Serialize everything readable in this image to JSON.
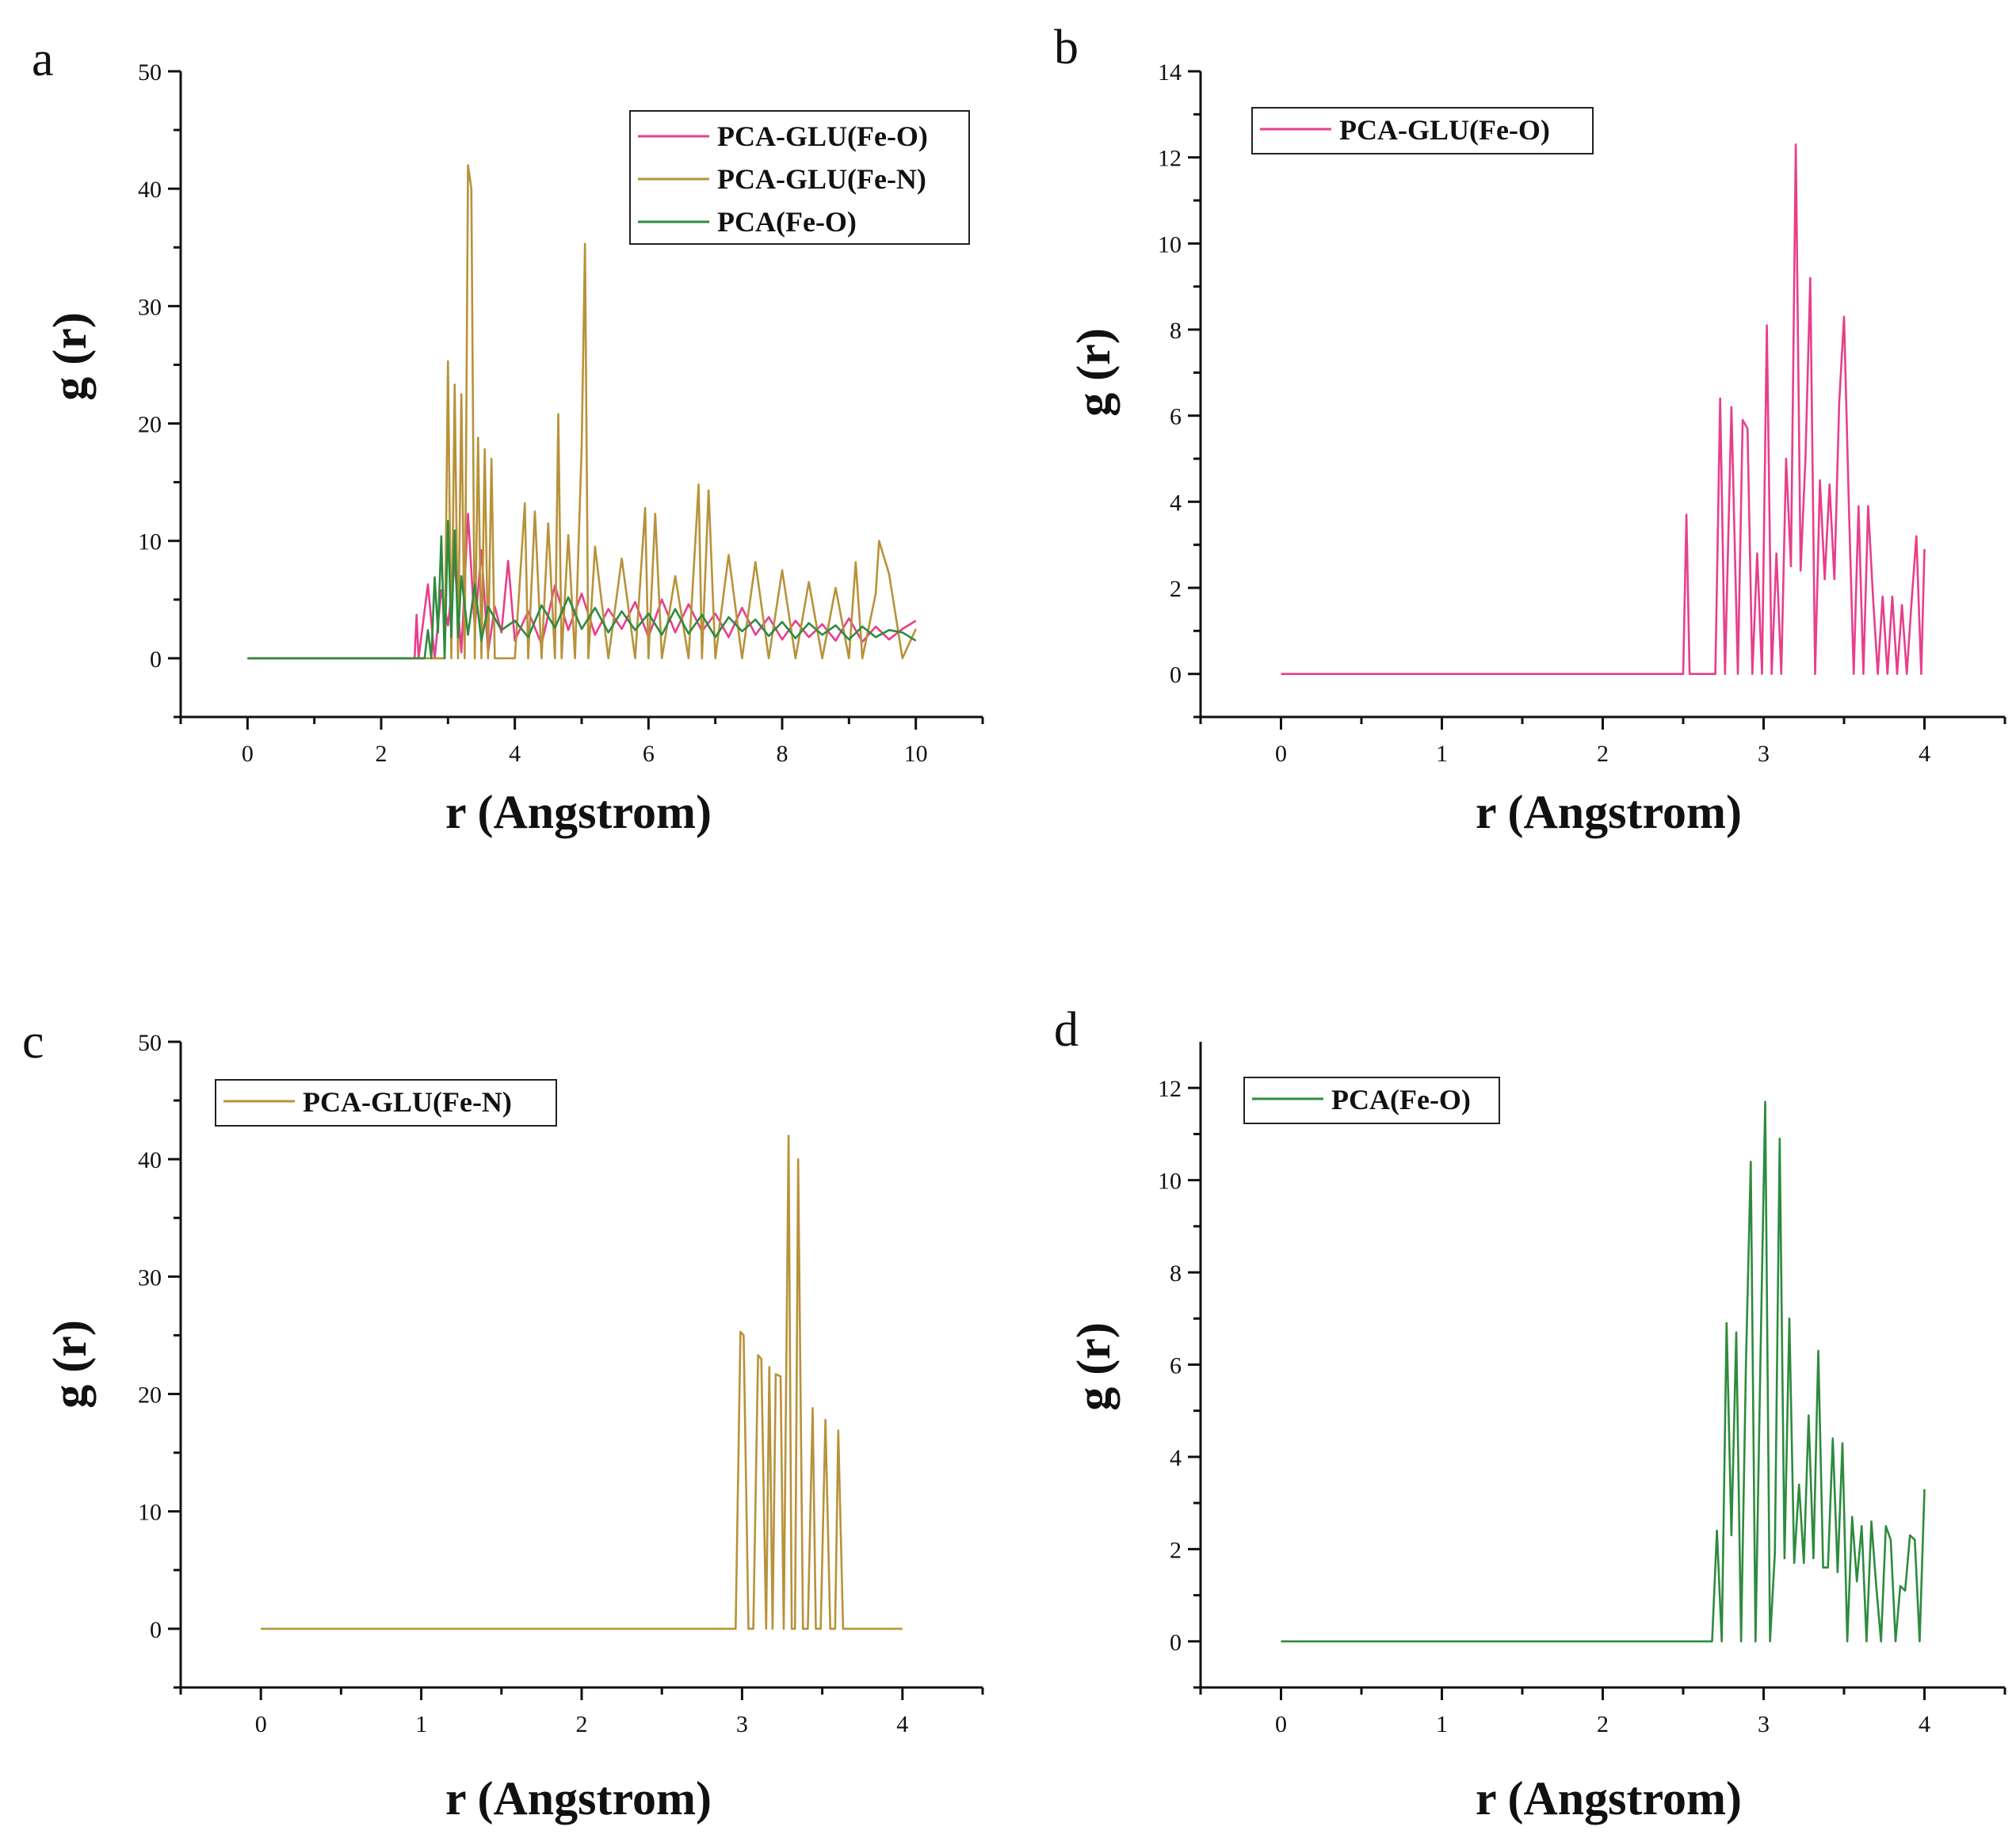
{
  "figure": {
    "panels": [
      "a",
      "b",
      "c",
      "d"
    ]
  },
  "colors": {
    "pink": "#e83e8c",
    "gold": "#b8923a",
    "green": "#2e8b3e"
  },
  "chart_data": [
    {
      "panel": "a",
      "type": "line",
      "title": "",
      "xlabel": "r (Angstrom)",
      "ylabel": "g (r)",
      "xlim": [
        -1,
        11
      ],
      "ylim": [
        -5,
        50
      ],
      "xticks": [
        0,
        2,
        4,
        6,
        8,
        10
      ],
      "yticks": [
        0,
        10,
        20,
        30,
        40,
        50
      ],
      "legend_position": "top-right",
      "series": [
        {
          "name": "PCA-GLU(Fe-O)",
          "color": "pink",
          "x": [
            0,
            2.5,
            2.53,
            2.56,
            2.7,
            2.8,
            2.9,
            3.0,
            3.1,
            3.2,
            3.3,
            3.4,
            3.5,
            3.6,
            3.7,
            3.8,
            3.9,
            4.0,
            4.2,
            4.4,
            4.6,
            4.8,
            5.0,
            5.2,
            5.4,
            5.6,
            5.8,
            6.0,
            6.2,
            6.4,
            6.6,
            6.8,
            7.0,
            7.2,
            7.4,
            7.6,
            7.8,
            8.0,
            8.2,
            8.4,
            8.6,
            8.8,
            9.0,
            9.2,
            9.4,
            9.6,
            9.8,
            10.0
          ],
          "y": [
            0,
            0,
            3.7,
            0,
            6.3,
            0,
            5.8,
            2.8,
            8.1,
            0.5,
            12.3,
            2.5,
            9.2,
            0.5,
            4.4,
            2.2,
            8.3,
            1.5,
            4,
            1.2,
            6.2,
            2.4,
            5.5,
            2,
            4.2,
            2.5,
            4.8,
            1.8,
            5,
            2.2,
            4.6,
            2.3,
            3.8,
            1.8,
            4.3,
            2,
            3.5,
            1.6,
            3.2,
            1.8,
            2.9,
            1.5,
            3.4,
            1.4,
            2.7,
            1.6,
            2.5,
            3.2
          ]
        },
        {
          "name": "PCA-GLU(Fe-N)",
          "color": "gold",
          "x": [
            0,
            2.95,
            3.0,
            3.05,
            3.1,
            3.15,
            3.2,
            3.25,
            3.3,
            3.35,
            3.4,
            3.45,
            3.5,
            3.55,
            3.6,
            3.65,
            3.7,
            4.0,
            4.15,
            4.2,
            4.3,
            4.4,
            4.5,
            4.6,
            4.65,
            4.7,
            4.8,
            4.9,
            5.0,
            5.05,
            5.1,
            5.2,
            5.4,
            5.6,
            5.8,
            5.95,
            6.0,
            6.1,
            6.2,
            6.4,
            6.6,
            6.75,
            6.8,
            6.9,
            7.0,
            7.2,
            7.4,
            7.6,
            7.8,
            8.0,
            8.2,
            8.4,
            8.6,
            8.8,
            9.0,
            9.1,
            9.2,
            9.4,
            9.45,
            9.6,
            9.8,
            10.0
          ],
          "y": [
            0,
            0,
            25.3,
            0,
            23.3,
            0,
            22.5,
            0,
            42,
            40,
            0,
            18.8,
            0,
            17.8,
            0,
            17,
            0,
            0,
            13.2,
            0,
            12.5,
            0,
            11.5,
            0,
            20.8,
            0,
            10.5,
            0,
            18,
            35.3,
            0,
            9.5,
            0,
            8.5,
            0,
            12.8,
            0,
            12.3,
            0,
            7,
            0,
            14.8,
            0,
            14.3,
            0,
            8.8,
            0,
            8.2,
            0,
            7.5,
            0,
            6.5,
            0,
            6,
            0,
            8.2,
            0,
            5.5,
            10,
            7.2,
            0,
            2.5
          ]
        },
        {
          "name": "PCA(Fe-O)",
          "color": "green",
          "x": [
            0,
            2.65,
            2.7,
            2.75,
            2.8,
            2.85,
            2.9,
            2.95,
            3.0,
            3.05,
            3.1,
            3.15,
            3.2,
            3.3,
            3.4,
            3.5,
            3.6,
            3.8,
            4.0,
            4.2,
            4.4,
            4.6,
            4.8,
            5.0,
            5.2,
            5.4,
            5.6,
            5.8,
            6.0,
            6.2,
            6.4,
            6.6,
            6.8,
            7.0,
            7.2,
            7.4,
            7.6,
            7.8,
            8.0,
            8.2,
            8.4,
            8.6,
            8.8,
            9.0,
            9.2,
            9.4,
            9.6,
            9.8,
            10.0
          ],
          "y": [
            0,
            0,
            2.4,
            0,
            6.9,
            2.2,
            10.4,
            0,
            11.7,
            1.8,
            10.9,
            1.8,
            7,
            2,
            6.3,
            1.5,
            4.4,
            2.4,
            3.2,
            1.8,
            4.5,
            2.6,
            5.2,
            2.5,
            4.3,
            2.2,
            4,
            2.4,
            3.8,
            2,
            4.2,
            2.1,
            3.7,
            1.8,
            3.5,
            2.3,
            3.3,
            1.9,
            3.1,
            1.7,
            3,
            2,
            2.8,
            1.6,
            2.7,
            1.8,
            2.4,
            2.2,
            1.5
          ]
        }
      ]
    },
    {
      "panel": "b",
      "type": "line",
      "title": "",
      "xlabel": "r (Angstrom)",
      "ylabel": "g (r)",
      "xlim": [
        -0.5,
        4.5
      ],
      "ylim": [
        -1,
        14
      ],
      "xticks": [
        0,
        1,
        2,
        3,
        4
      ],
      "yticks": [
        0,
        2,
        4,
        6,
        8,
        10,
        12,
        14
      ],
      "legend_position": "top-left",
      "series": [
        {
          "name": "PCA-GLU(Fe-O)",
          "color": "pink",
          "x": [
            0,
            2.5,
            2.52,
            2.54,
            2.7,
            2.73,
            2.76,
            2.8,
            2.84,
            2.87,
            2.9,
            2.93,
            2.96,
            2.99,
            3.02,
            3.05,
            3.08,
            3.11,
            3.14,
            3.17,
            3.2,
            3.23,
            3.26,
            3.29,
            3.32,
            3.35,
            3.38,
            3.41,
            3.44,
            3.47,
            3.5,
            3.53,
            3.56,
            3.59,
            3.62,
            3.65,
            3.68,
            3.71,
            3.74,
            3.77,
            3.8,
            3.83,
            3.86,
            3.89,
            3.92,
            3.95,
            3.98,
            4.0
          ],
          "y": [
            0,
            0,
            3.7,
            0,
            0,
            6.4,
            0,
            6.2,
            0,
            5.9,
            5.7,
            0,
            2.8,
            0,
            8.1,
            0,
            2.8,
            0,
            5.0,
            2.5,
            12.3,
            2.4,
            5.0,
            9.2,
            0,
            4.5,
            2.2,
            4.4,
            2.2,
            6.3,
            8.3,
            3.9,
            0,
            3.9,
            0,
            3.9,
            1.8,
            0,
            1.8,
            0,
            1.8,
            0,
            1.6,
            0,
            1.7,
            3.2,
            0,
            2.9
          ]
        }
      ]
    },
    {
      "panel": "c",
      "type": "line",
      "title": "",
      "xlabel": "r (Angstrom)",
      "ylabel": "g (r)",
      "xlim": [
        -0.5,
        4.5
      ],
      "ylim": [
        -5,
        50
      ],
      "xticks": [
        0,
        1,
        2,
        3,
        4
      ],
      "yticks": [
        0,
        10,
        20,
        30,
        40,
        50
      ],
      "legend_position": "top-left",
      "series": [
        {
          "name": "PCA-GLU(Fe-N)",
          "color": "gold",
          "x": [
            0,
            2.96,
            2.99,
            3.01,
            3.04,
            3.07,
            3.1,
            3.12,
            3.15,
            3.17,
            3.19,
            3.21,
            3.24,
            3.26,
            3.29,
            3.31,
            3.33,
            3.35,
            3.38,
            3.41,
            3.44,
            3.46,
            3.49,
            3.52,
            3.55,
            3.58,
            3.6,
            3.63,
            3.66,
            3.7,
            4.0
          ],
          "y": [
            0,
            0,
            25.3,
            25.0,
            0,
            0,
            23.3,
            23.0,
            0,
            22.3,
            0,
            21.7,
            21.5,
            0,
            42,
            0,
            0,
            40,
            0,
            0,
            18.8,
            0,
            0,
            17.8,
            0,
            0,
            16.9,
            0,
            0,
            0,
            0
          ]
        }
      ]
    },
    {
      "panel": "d",
      "type": "line",
      "title": "",
      "xlabel": "r (Angstrom)",
      "ylabel": "g (r)",
      "xlim": [
        -0.5,
        4.5
      ],
      "ylim": [
        -1,
        13
      ],
      "xticks": [
        0,
        1,
        2,
        3,
        4
      ],
      "yticks": [
        0,
        2,
        4,
        6,
        8,
        10,
        12
      ],
      "legend_position": "top-left",
      "series": [
        {
          "name": "PCA(Fe-O)",
          "color": "green",
          "x": [
            0,
            2.68,
            2.71,
            2.74,
            2.77,
            2.8,
            2.83,
            2.86,
            2.89,
            2.92,
            2.95,
            2.98,
            3.01,
            3.04,
            3.07,
            3.1,
            3.13,
            3.16,
            3.19,
            3.22,
            3.25,
            3.28,
            3.31,
            3.34,
            3.37,
            3.4,
            3.43,
            3.46,
            3.49,
            3.52,
            3.55,
            3.58,
            3.61,
            3.64,
            3.67,
            3.7,
            3.73,
            3.76,
            3.79,
            3.82,
            3.85,
            3.88,
            3.91,
            3.94,
            3.97,
            4.0
          ],
          "y": [
            0,
            0,
            2.4,
            0,
            6.9,
            2.3,
            6.7,
            0,
            6.0,
            10.4,
            0,
            6.0,
            11.7,
            0,
            1.9,
            10.9,
            1.8,
            7.0,
            1.7,
            3.4,
            1.7,
            4.9,
            1.8,
            6.3,
            1.6,
            1.6,
            4.4,
            1.5,
            4.3,
            0,
            2.7,
            1.3,
            2.5,
            0,
            2.6,
            1.2,
            0,
            2.5,
            2.2,
            0,
            1.2,
            1.1,
            2.3,
            2.2,
            0,
            3.3
          ]
        }
      ]
    }
  ]
}
